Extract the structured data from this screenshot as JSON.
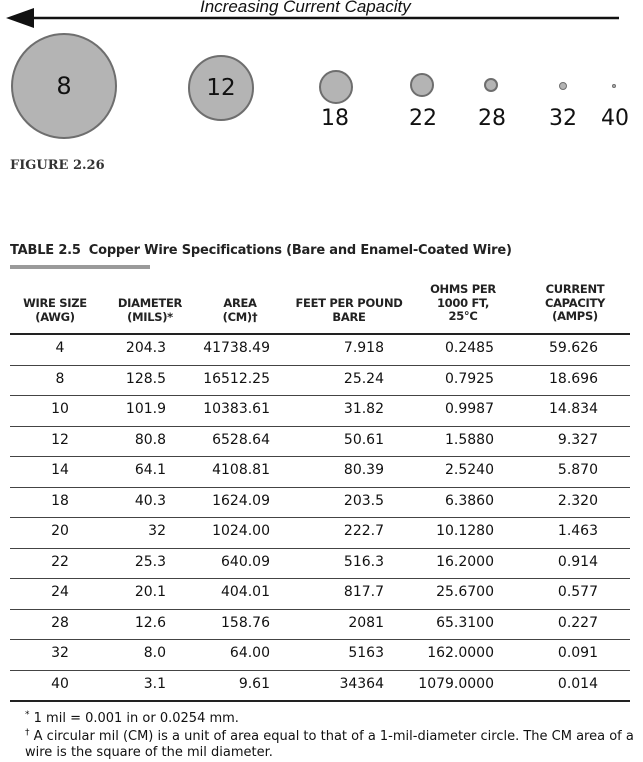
{
  "figure": {
    "arrow_label": "Increasing Current Capacity",
    "caption": "FIGURE 2.26",
    "gauges": [
      "8",
      "12",
      "18",
      "22",
      "28",
      "32",
      "40"
    ]
  },
  "table": {
    "number": "TABLE 2.5",
    "title": "Copper Wire Specifications (Bare and Enamel-Coated Wire)",
    "headers": [
      "WIRE SIZE\n(AWG)",
      "DIAMETER\n(MILS)*",
      "AREA\n(CM)†",
      "FEET PER POUND\nBARE",
      "OHMS PER\n1000 FT,\n25°C",
      "CURRENT\nCAPACITY\n(AMPS)"
    ],
    "rows": [
      [
        "4",
        "204.3",
        "41738.49",
        "7.918",
        "0.2485",
        "59.626"
      ],
      [
        "8",
        "128.5",
        "16512.25",
        "25.24",
        "0.7925",
        "18.696"
      ],
      [
        "10",
        "101.9",
        "10383.61",
        "31.82",
        "0.9987",
        "14.834"
      ],
      [
        "12",
        "80.8",
        "6528.64",
        "50.61",
        "1.5880",
        "9.327"
      ],
      [
        "14",
        "64.1",
        "4108.81",
        "80.39",
        "2.5240",
        "5.870"
      ],
      [
        "18",
        "40.3",
        "1624.09",
        "203.5",
        "6.3860",
        "2.320"
      ],
      [
        "20",
        "32",
        "1024.00",
        "222.7",
        "10.1280",
        "1.463"
      ],
      [
        "22",
        "25.3",
        "640.09",
        "516.3",
        "16.2000",
        "0.914"
      ],
      [
        "24",
        "20.1",
        "404.01",
        "817.7",
        "25.6700",
        "0.577"
      ],
      [
        "28",
        "12.6",
        "158.76",
        "2081",
        "65.3100",
        "0.227"
      ],
      [
        "32",
        "8.0",
        "64.00",
        "5163",
        "162.0000",
        "0.091"
      ],
      [
        "40",
        "3.1",
        "9.61",
        "34364",
        "1079.0000",
        "0.014"
      ]
    ]
  },
  "footnotes": {
    "star_mark": "*",
    "star_text": "1 mil = 0.001 in or 0.0254 mm.",
    "dagger_mark": "†",
    "dagger_text_1": "A circular mil (CM) is a unit of area equal to that of a 1-mil-diameter circle. The CM area of a",
    "dagger_text_2": "wire is the square of the mil diameter."
  },
  "colors": {
    "circle_fill": "#b4b4b4",
    "circle_stroke": "#6e6e6e",
    "rule": "#444444"
  }
}
